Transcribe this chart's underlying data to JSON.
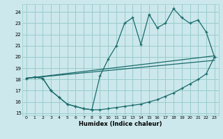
{
  "bg_color": "#cce8ec",
  "grid_color": "#99cccc",
  "line_color": "#1a6b6b",
  "xlim": [
    -0.5,
    23.5
  ],
  "ylim": [
    14.8,
    24.7
  ],
  "xlabel": "Humidex (Indice chaleur)",
  "xtick_labels": [
    "0",
    "1",
    "2",
    "3",
    "4",
    "5",
    "6",
    "7",
    "8",
    "9",
    "10",
    "11",
    "12",
    "13",
    "14",
    "15",
    "16",
    "17",
    "18",
    "19",
    "20",
    "21",
    "22",
    "23"
  ],
  "ytick_values": [
    15,
    16,
    17,
    18,
    19,
    20,
    21,
    22,
    23,
    24
  ],
  "line1_x": [
    0,
    23
  ],
  "line1_y": [
    18.1,
    20.1
  ],
  "line2_x": [
    0,
    23
  ],
  "line2_y": [
    18.1,
    19.7
  ],
  "curve_upper_x": [
    0,
    1,
    2,
    3,
    4,
    5,
    6,
    7,
    8,
    9,
    10,
    11,
    12,
    13,
    14,
    15,
    16,
    17,
    18,
    19,
    20,
    21,
    22,
    23
  ],
  "curve_upper_y": [
    18.1,
    18.2,
    18.1,
    17.0,
    16.4,
    15.8,
    15.6,
    15.4,
    15.3,
    18.3,
    19.8,
    21.0,
    23.0,
    23.5,
    21.1,
    23.8,
    22.6,
    23.0,
    24.3,
    23.5,
    23.0,
    23.3,
    22.2,
    20.0
  ],
  "curve_lower_x": [
    0,
    1,
    2,
    3,
    4,
    5,
    6,
    7,
    8,
    9,
    10,
    11,
    12,
    13,
    14,
    15,
    16,
    17,
    18,
    19,
    20,
    21,
    22,
    23
  ],
  "curve_lower_y": [
    18.1,
    18.2,
    18.1,
    17.0,
    16.4,
    15.8,
    15.6,
    15.4,
    15.3,
    15.3,
    15.4,
    15.5,
    15.6,
    15.7,
    15.8,
    16.0,
    16.2,
    16.5,
    16.8,
    17.2,
    17.6,
    18.0,
    18.5,
    20.0
  ]
}
